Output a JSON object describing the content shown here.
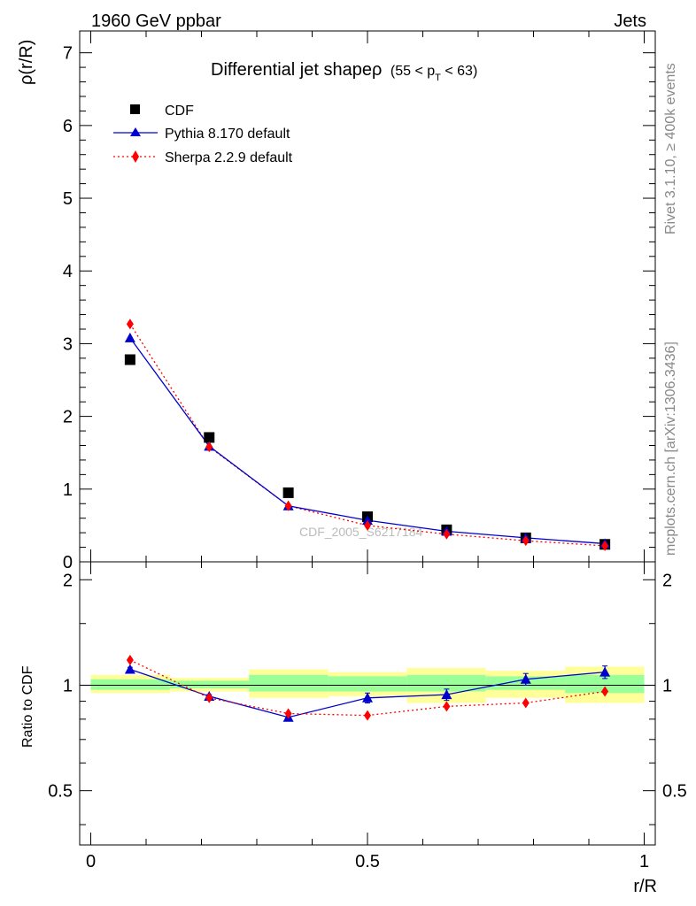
{
  "header": {
    "left": "1960 GeV ppbar",
    "right": "Jets"
  },
  "side_labels": {
    "rivet": "Rivet 3.1.10, ≥ 400k events",
    "mcplots": "mcplots.cern.ch [arXiv:1306.3436]"
  },
  "watermark": "CDF_2005_S6217184",
  "colors": {
    "cdf": "#000000",
    "pythia": "#0000cc",
    "sherpa": "#ff0000",
    "band_inner": "#99ff99",
    "band_outer": "#ffff99"
  },
  "chart_data": [
    {
      "type": "scatter",
      "panel": "main",
      "title": "Differential jet shapeρ",
      "title_suffix": "(55 < p",
      "title_sub": "T",
      "title_end": " < 63)",
      "ylabel": "ρ(r/R)",
      "xlim": [
        -0.02,
        1.02
      ],
      "ylim": [
        0,
        7.3
      ],
      "yticks": [
        0,
        1,
        2,
        3,
        4,
        5,
        6,
        7
      ],
      "ytick_labels": [
        "0",
        "1",
        "2",
        "3",
        "4",
        "5",
        "6",
        "7"
      ],
      "legend_position": "top-left",
      "x": [
        0.071,
        0.214,
        0.357,
        0.5,
        0.643,
        0.786,
        0.929
      ],
      "series": [
        {
          "name": "CDF",
          "style": "square",
          "values": [
            2.78,
            1.71,
            0.95,
            0.62,
            0.44,
            0.33,
            0.24
          ]
        },
        {
          "name": "Pythia 8.170 default",
          "style": "triangle-line",
          "values": [
            3.08,
            1.59,
            0.77,
            0.57,
            0.42,
            0.33,
            0.25
          ]
        },
        {
          "name": "Sherpa 2.2.9 default",
          "style": "diamond-dotted",
          "values": [
            3.27,
            1.58,
            0.77,
            0.5,
            0.38,
            0.29,
            0.22
          ]
        }
      ]
    },
    {
      "type": "scatter",
      "panel": "ratio",
      "ylabel": "Ratio to CDF",
      "xlabel": "r/R",
      "xlim": [
        -0.02,
        1.02
      ],
      "ylim": [
        0.35,
        2.25
      ],
      "yticks": [
        0.5,
        1,
        2
      ],
      "ytick_labels": [
        "0.5",
        "1",
        "2"
      ],
      "xticks": [
        0,
        0.5,
        1
      ],
      "xtick_labels": [
        "0",
        "0.5",
        "1"
      ],
      "x": [
        0.071,
        0.214,
        0.357,
        0.5,
        0.643,
        0.786,
        0.929
      ],
      "bands": {
        "edges": [
          [
            0,
            0.143
          ],
          [
            0.143,
            0.286
          ],
          [
            0.286,
            0.429
          ],
          [
            0.429,
            0.571
          ],
          [
            0.571,
            0.714
          ],
          [
            0.714,
            0.857
          ],
          [
            0.857,
            1.0
          ]
        ],
        "outer": [
          [
            0.95,
            1.07
          ],
          [
            0.96,
            1.05
          ],
          [
            0.92,
            1.11
          ],
          [
            0.93,
            1.09
          ],
          [
            0.89,
            1.12
          ],
          [
            0.92,
            1.1
          ],
          [
            0.89,
            1.13
          ]
        ],
        "inner": [
          [
            0.97,
            1.04
          ],
          [
            0.98,
            1.03
          ],
          [
            0.96,
            1.07
          ],
          [
            0.96,
            1.06
          ],
          [
            0.96,
            1.07
          ],
          [
            0.97,
            1.06
          ],
          [
            0.95,
            1.07
          ]
        ]
      },
      "series": [
        {
          "name": "Pythia 8.170 default",
          "style": "triangle-line",
          "values": [
            1.11,
            0.93,
            0.81,
            0.92,
            0.94,
            1.04,
            1.09
          ],
          "errors": [
            0.015,
            0.01,
            0.012,
            0.03,
            0.035,
            0.04,
            0.045
          ]
        },
        {
          "name": "Sherpa 2.2.9 default",
          "style": "diamond-dotted",
          "values": [
            1.18,
            0.92,
            0.83,
            0.82,
            0.87,
            0.89,
            0.96
          ]
        }
      ]
    }
  ]
}
